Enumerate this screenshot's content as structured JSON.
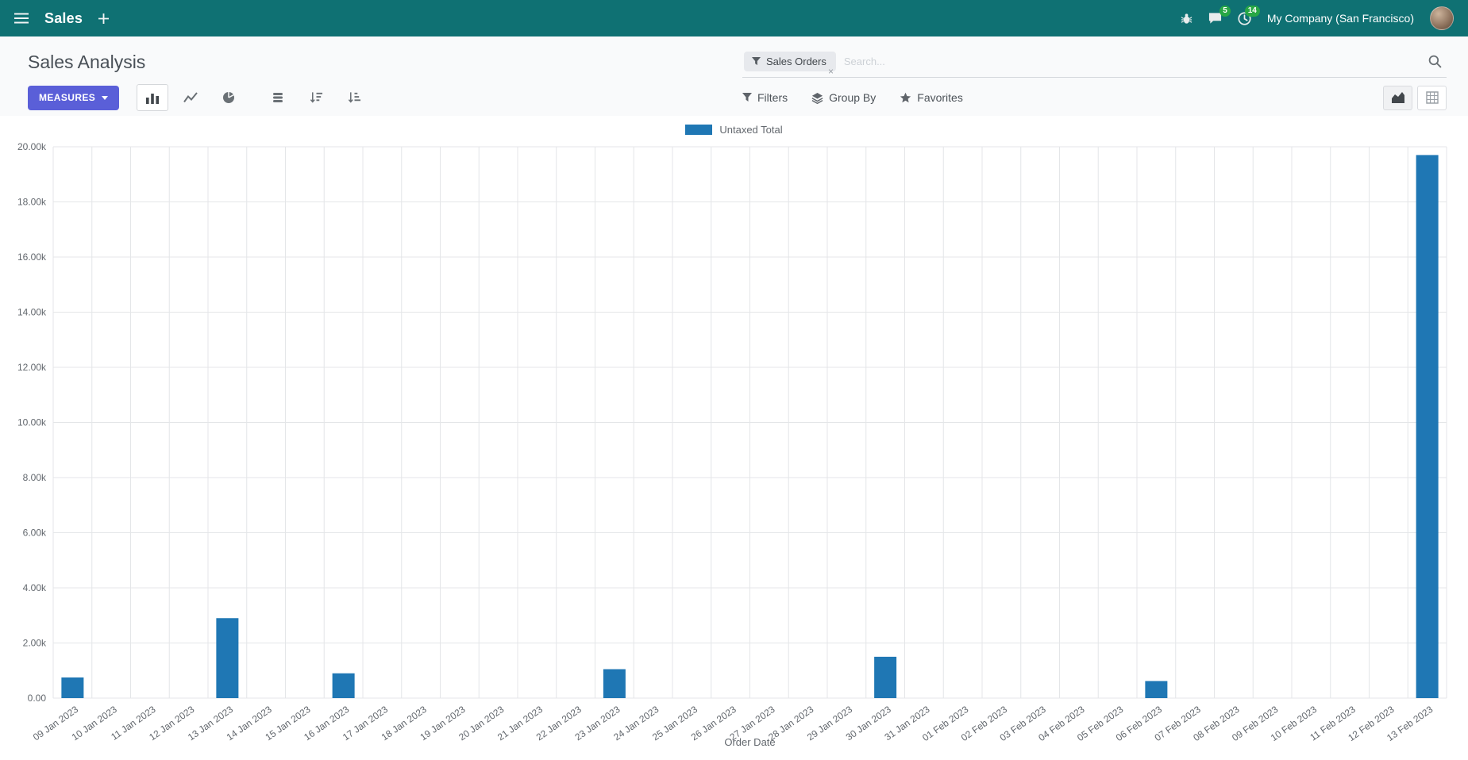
{
  "colors": {
    "navbar_bg": "#0f7173",
    "accent": "#5a5fd8",
    "badge": "#28a745"
  },
  "navbar": {
    "app_name": "Sales",
    "company_name": "My Company (San Francisco)",
    "messages_badge": "5",
    "activities_badge": "14",
    "icons": [
      "menu-icon",
      "plus-icon",
      "debug-icon",
      "chat-icon",
      "clock-icon",
      "avatar"
    ]
  },
  "control_panel": {
    "breadcrumb": "Sales Analysis",
    "measures_button": "MEASURES",
    "filters": "Filters",
    "group_by": "Group By",
    "favorites": "Favorites",
    "search": {
      "facet_label": "Sales Orders",
      "placeholder": "Search...",
      "remove_facet": "×"
    },
    "icons": [
      "bar-chart-icon",
      "line-chart-icon",
      "pie-chart-icon",
      "stacked-icon",
      "sort-desc-icon",
      "sort-asc-icon",
      "filter-icon",
      "layers-icon",
      "star-icon",
      "area-chart-icon",
      "pivot-icon",
      "search-icon",
      "caret-down-icon"
    ]
  },
  "chart_data": {
    "type": "bar",
    "title": "",
    "xlabel": "Order Date",
    "ylabel": "",
    "ylim": [
      0,
      20000
    ],
    "grid": true,
    "legend_position": "top",
    "y_tick_labels": [
      "0.00",
      "2.00k",
      "4.00k",
      "6.00k",
      "8.00k",
      "10.00k",
      "12.00k",
      "14.00k",
      "16.00k",
      "18.00k",
      "20.00k"
    ],
    "legend": [
      {
        "label": "Untaxed Total",
        "color": "#1f77b4"
      }
    ],
    "categories": [
      "09 Jan 2023",
      "10 Jan 2023",
      "11 Jan 2023",
      "12 Jan 2023",
      "13 Jan 2023",
      "14 Jan 2023",
      "15 Jan 2023",
      "16 Jan 2023",
      "17 Jan 2023",
      "18 Jan 2023",
      "19 Jan 2023",
      "20 Jan 2023",
      "21 Jan 2023",
      "22 Jan 2023",
      "23 Jan 2023",
      "24 Jan 2023",
      "25 Jan 2023",
      "26 Jan 2023",
      "27 Jan 2023",
      "28 Jan 2023",
      "29 Jan 2023",
      "30 Jan 2023",
      "31 Jan 2023",
      "01 Feb 2023",
      "02 Feb 2023",
      "03 Feb 2023",
      "04 Feb 2023",
      "05 Feb 2023",
      "06 Feb 2023",
      "07 Feb 2023",
      "08 Feb 2023",
      "09 Feb 2023",
      "10 Feb 2023",
      "11 Feb 2023",
      "12 Feb 2023",
      "13 Feb 2023"
    ],
    "values": [
      750,
      0,
      0,
      0,
      2900,
      0,
      0,
      900,
      0,
      0,
      0,
      0,
      0,
      0,
      1050,
      0,
      0,
      0,
      0,
      0,
      0,
      1500,
      0,
      0,
      0,
      0,
      0,
      0,
      620,
      0,
      0,
      0,
      0,
      0,
      0,
      19700
    ]
  }
}
